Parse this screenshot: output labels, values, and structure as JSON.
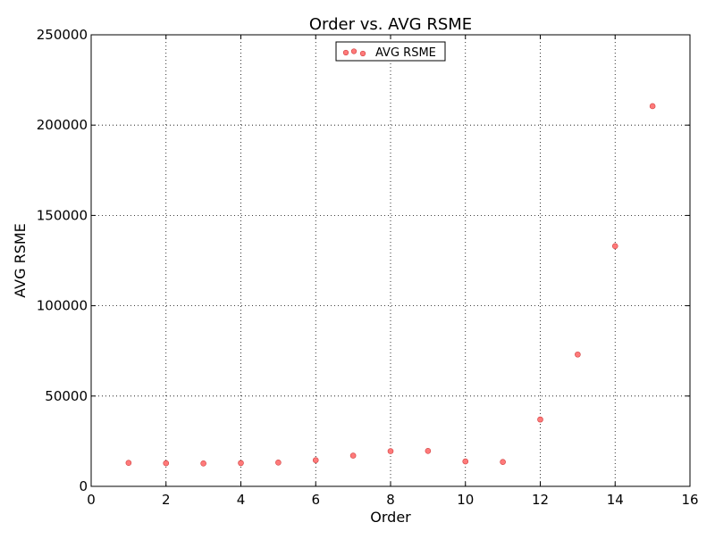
{
  "chart_data": {
    "type": "scatter",
    "title": "Order vs. AVG RSME",
    "xlabel": "Order",
    "ylabel": "AVG RSME",
    "xlim": [
      0,
      16
    ],
    "ylim": [
      0,
      250000
    ],
    "xticks": [
      0,
      2,
      4,
      6,
      8,
      10,
      12,
      14,
      16
    ],
    "yticks": [
      0,
      50000,
      100000,
      150000,
      200000,
      250000
    ],
    "grid": true,
    "legend": "upper-center",
    "marker_color": "#ff7a7a",
    "marker_edge_color": "#d04040",
    "series": [
      {
        "name": "AVG RSME",
        "x": [
          1,
          2,
          3,
          4,
          5,
          6,
          7,
          8,
          9,
          10,
          11,
          12,
          13,
          14,
          15
        ],
        "y": [
          13000,
          12800,
          12700,
          12900,
          13200,
          14500,
          17000,
          19500,
          19600,
          13800,
          13500,
          37000,
          73000,
          133000,
          210500
        ]
      }
    ]
  }
}
